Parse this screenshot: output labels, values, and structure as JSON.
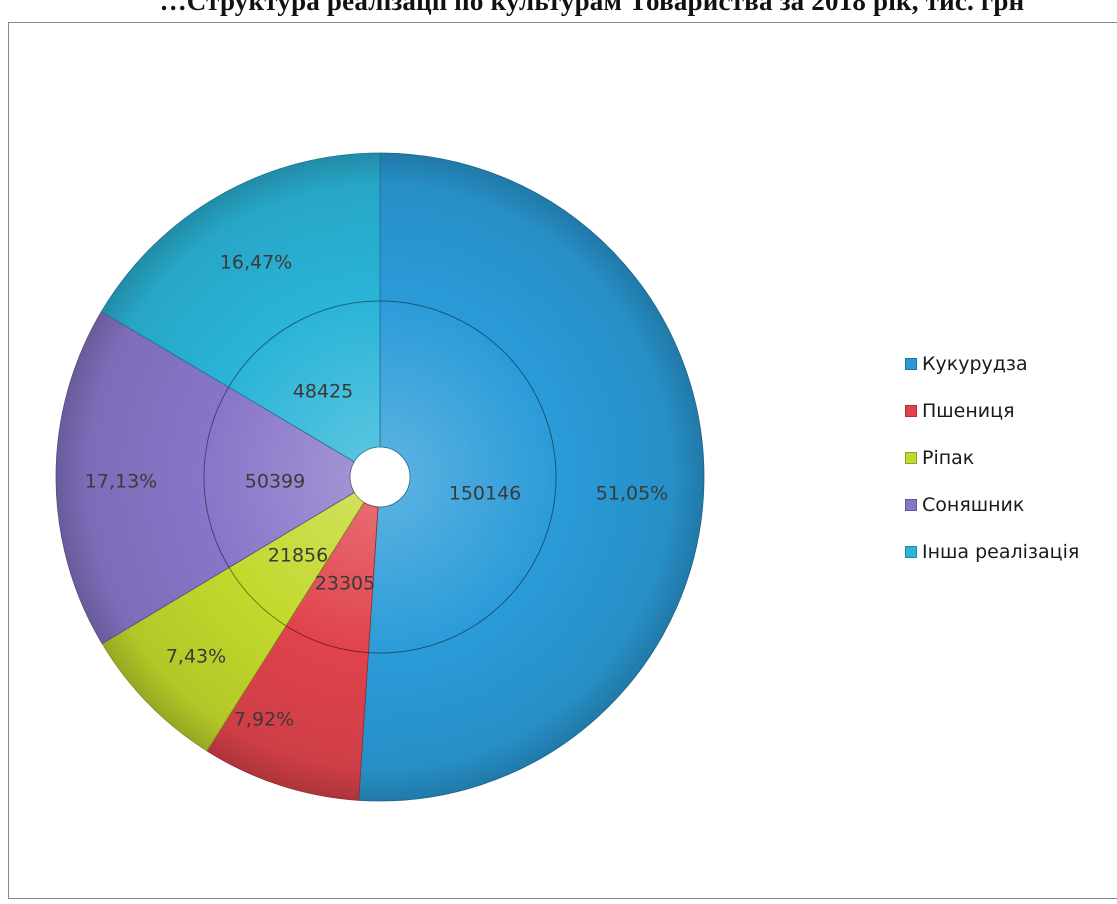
{
  "chart_data": {
    "type": "doughnut",
    "title": "…Структура реалізації по культурам Товариства за 2018 рік, тис. грн",
    "categories": [
      "Кукурудза",
      "Пшениця",
      "Ріпак",
      "Соняшник",
      "Інша реалізація"
    ],
    "colors": [
      "#2a9bd8",
      "#e0434c",
      "#c3d82c",
      "#8875c8",
      "#2ab4d8"
    ],
    "series": [
      {
        "ring": "inner",
        "values": [
          150146,
          23305,
          21856,
          50399,
          48425
        ],
        "labels": [
          "150146",
          "23305",
          "21856",
          "50399",
          "48425"
        ]
      },
      {
        "ring": "outer",
        "values": [
          51.05,
          7.92,
          7.43,
          17.13,
          16.47
        ],
        "labels": [
          "51,05%",
          "7,92%",
          "7,43%",
          "17,13%",
          "16,47%"
        ]
      }
    ],
    "legend_position": "right"
  }
}
